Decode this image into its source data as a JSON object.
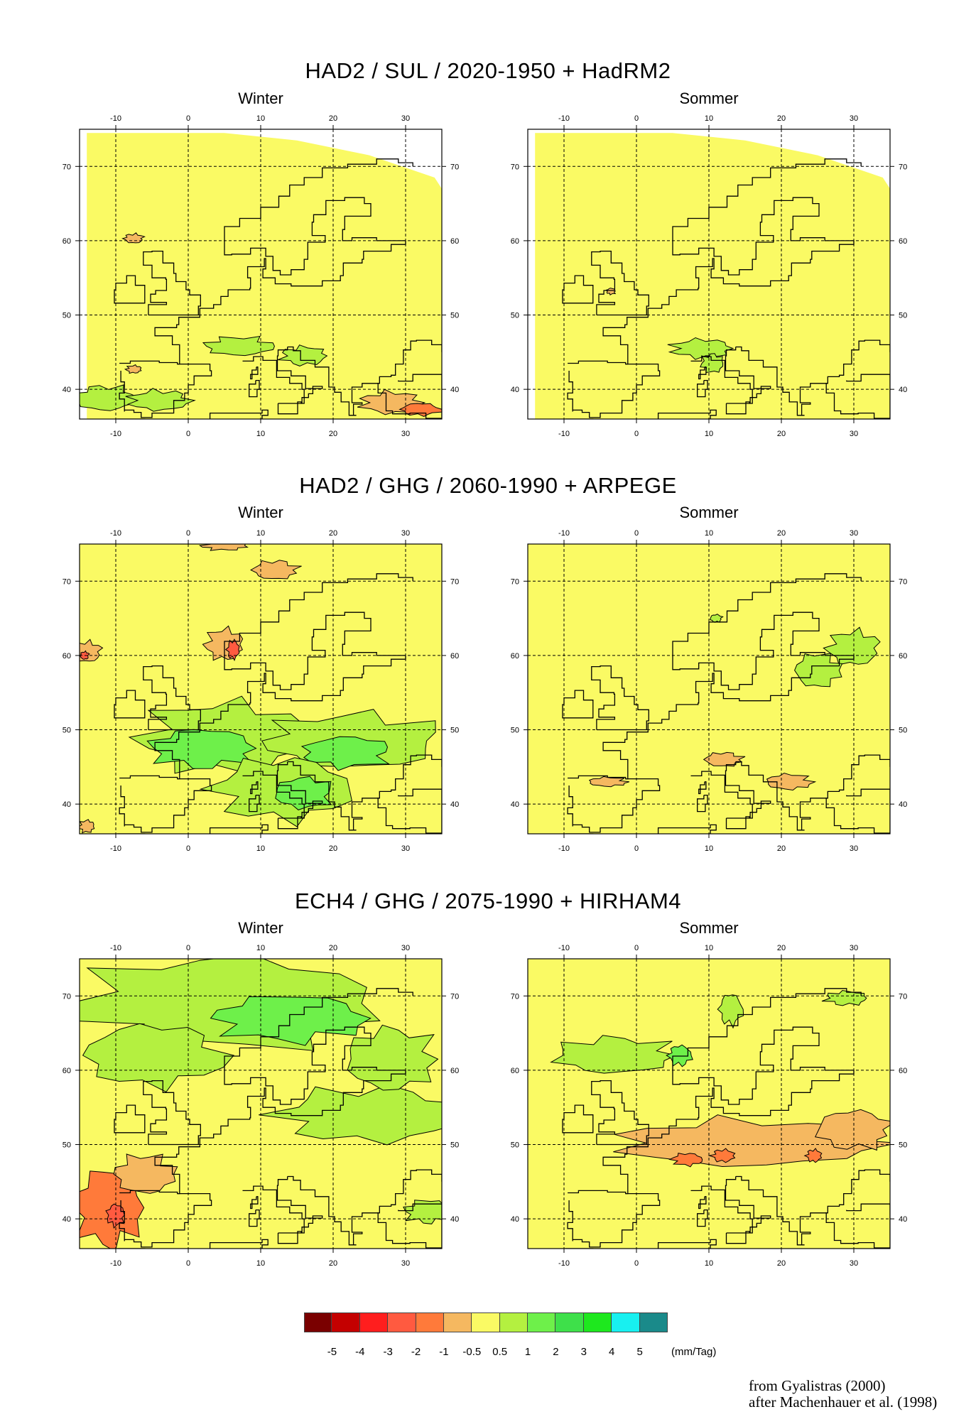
{
  "rows": [
    {
      "title": "HAD2 / SUL / 2020-1950 + HadRM2",
      "winter": "Winter",
      "summer": "Sommer"
    },
    {
      "title": "HAD2 / GHG / 2060-1990 + ARPEGE",
      "winter": "Winter",
      "summer": "Sommer"
    },
    {
      "title": "ECH4 / GHG / 2075-1990 + HIRHAM4",
      "winter": "Winter",
      "summer": "Sommer"
    }
  ],
  "axes": {
    "lon_ticks": [
      "-10",
      "0",
      "10",
      "20",
      "30"
    ],
    "lat_ticks": [
      "70",
      "60",
      "50",
      "40"
    ],
    "lon_range": [
      -15,
      35
    ],
    "lat_range": [
      36,
      75
    ]
  },
  "legend": {
    "labels": [
      "-5",
      "-4",
      "-3",
      "-2",
      "-1",
      "-0.5",
      "0.5",
      "1",
      "2",
      "3",
      "4",
      "5"
    ],
    "colors": [
      "#7a0000",
      "#c40000",
      "#ff1e1e",
      "#ff5a40",
      "#ff7a3a",
      "#f5b860",
      "#fafa64",
      "#b4f040",
      "#6ef04a",
      "#3ee04a",
      "#1ee81e",
      "#18f0f0",
      "#1a8a8a"
    ],
    "unit": "(mm/Tag)"
  },
  "credit": {
    "line1": "from Gyalistras (2000)",
    "line2": "after Machenhauer et al. (1998)"
  },
  "colors": {
    "yellow": "#fafa64",
    "light_green": "#b4f040",
    "green": "#6ef04a",
    "orange_light": "#f5b860",
    "orange": "#ff7a3a",
    "red": "#ff5a40"
  }
}
